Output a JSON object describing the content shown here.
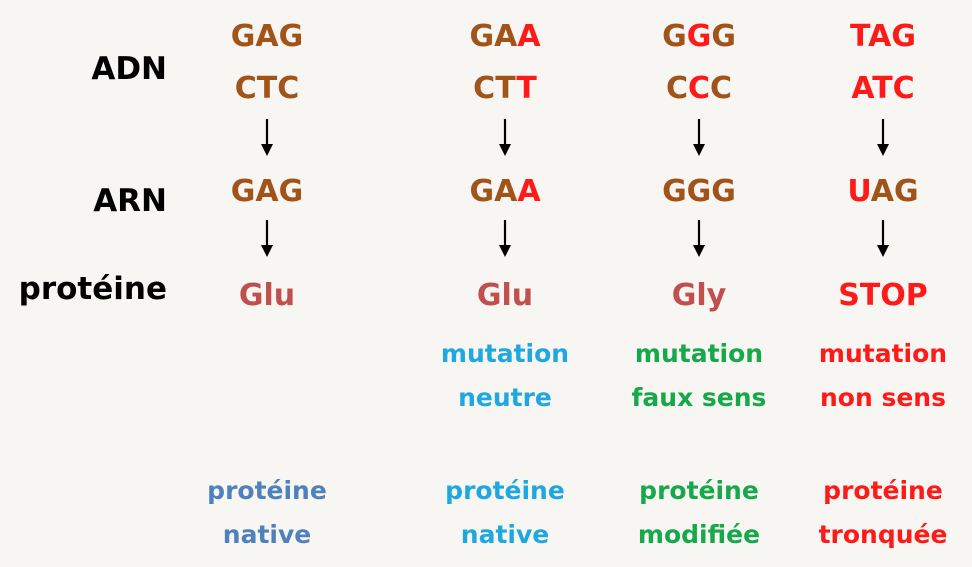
{
  "colors": {
    "base": "#a0541a",
    "mutated": "#ff1a1a",
    "amino": "#c0504d",
    "stop": "#ff1a1a",
    "label": "#000000",
    "native_col1": "#4f81bd",
    "neutral": "#1fa8e0",
    "missense": "#17a84a",
    "nonsense": "#ff1a1a"
  },
  "labels": {
    "adn": "ADN",
    "arn": "ARN",
    "proteine": "protéine"
  },
  "columns": [
    {
      "adn_top": [
        {
          "t": "GAG",
          "m": false
        }
      ],
      "adn_bottom": [
        {
          "t": "CTC",
          "m": false
        }
      ],
      "arn": [
        {
          "t": "GAG",
          "m": false
        }
      ],
      "protein": "Glu",
      "protein_stop": false,
      "mutation": [
        "",
        ""
      ],
      "result": [
        "protéine",
        "native"
      ],
      "result_color": "native_col1",
      "mutation_color": "neutral"
    },
    {
      "adn_top": [
        {
          "t": "GA",
          "m": false
        },
        {
          "t": "A",
          "m": true
        }
      ],
      "adn_bottom": [
        {
          "t": "CT",
          "m": false
        },
        {
          "t": "T",
          "m": true
        }
      ],
      "arn": [
        {
          "t": "GA",
          "m": false
        },
        {
          "t": "A",
          "m": true
        }
      ],
      "protein": "Glu",
      "protein_stop": false,
      "mutation": [
        "mutation",
        "neutre"
      ],
      "result": [
        "protéine",
        "native"
      ],
      "result_color": "neutral",
      "mutation_color": "neutral"
    },
    {
      "adn_top": [
        {
          "t": "G",
          "m": false
        },
        {
          "t": "G",
          "m": true
        },
        {
          "t": "G",
          "m": false
        }
      ],
      "adn_bottom": [
        {
          "t": "C",
          "m": false
        },
        {
          "t": "C",
          "m": true
        },
        {
          "t": "C",
          "m": false
        }
      ],
      "arn": [
        {
          "t": "GGG",
          "m": false
        }
      ],
      "protein": "Gly",
      "protein_stop": false,
      "mutation": [
        "mutation",
        "faux sens"
      ],
      "result": [
        "protéine",
        "modifiée"
      ],
      "result_color": "missense",
      "mutation_color": "missense"
    },
    {
      "adn_top": [
        {
          "t": "TAG",
          "m": true
        }
      ],
      "adn_bottom": [
        {
          "t": "ATC",
          "m": true
        }
      ],
      "arn": [
        {
          "t": "U",
          "m": true
        },
        {
          "t": "AG",
          "m": false
        }
      ],
      "protein": "STOP",
      "protein_stop": true,
      "mutation": [
        "mutation",
        "non sens"
      ],
      "result": [
        "protéine",
        "tronquée"
      ],
      "result_color": "nonsense",
      "mutation_color": "nonsense"
    }
  ]
}
